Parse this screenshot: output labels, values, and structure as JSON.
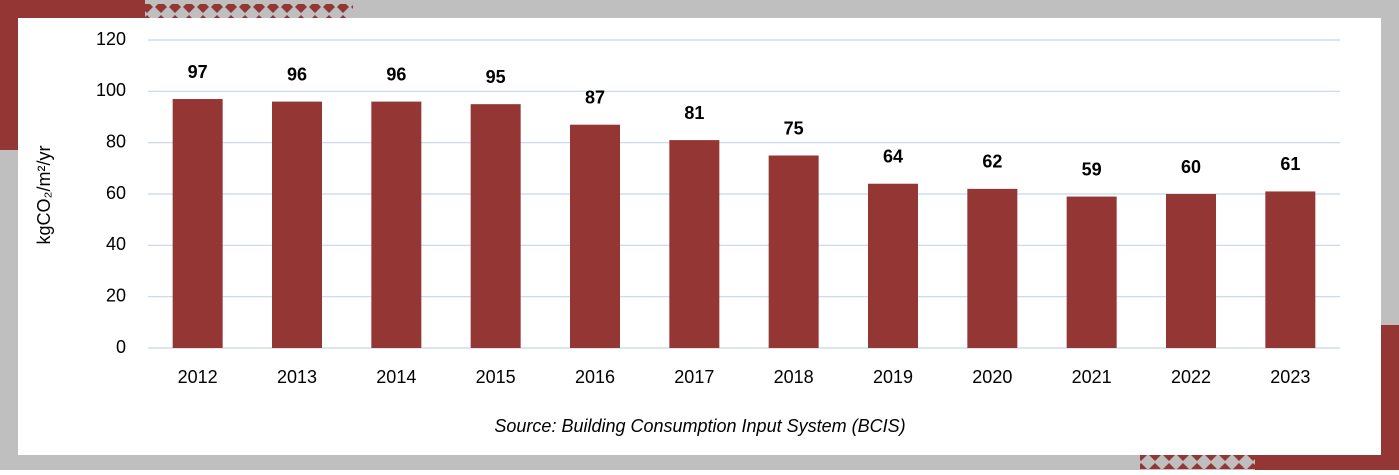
{
  "chart_data": {
    "type": "bar",
    "y_label": "kgCO₂/m²/yr",
    "source": "Source: Building Consumption Input System (BCIS)",
    "categories": [
      "2012",
      "2013",
      "2014",
      "2015",
      "2016",
      "2017",
      "2018",
      "2019",
      "2020",
      "2021",
      "2022",
      "2023"
    ],
    "values": [
      97,
      96,
      96,
      95,
      87,
      81,
      75,
      64,
      62,
      59,
      60,
      61
    ],
    "color": "#943634",
    "ylim": [
      0,
      120
    ],
    "yticks": [
      0,
      20,
      40,
      60,
      80,
      100,
      120
    ],
    "grid": true
  }
}
